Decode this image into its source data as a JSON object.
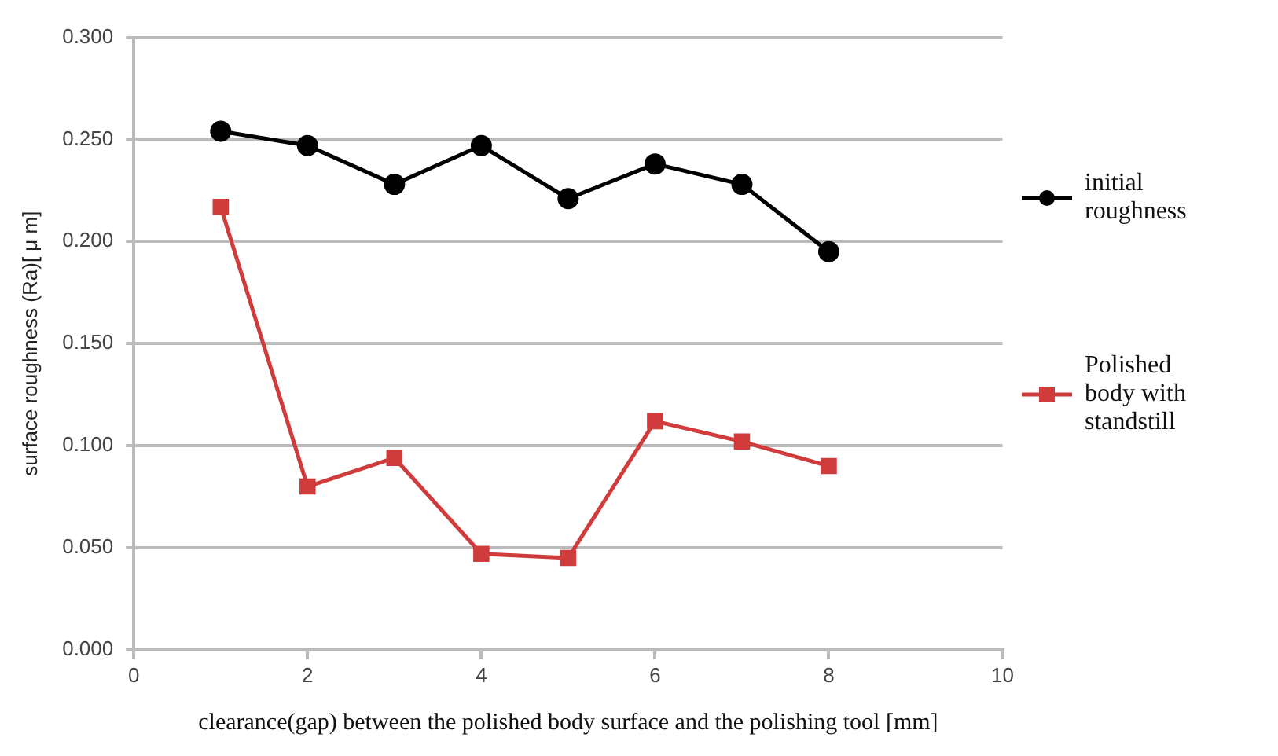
{
  "chart_data": {
    "type": "line",
    "xlabel": "clearance(gap) between the polished body surface and the polishing tool [mm]",
    "ylabel": "surface roughness (Ra)[ μ m]",
    "x": [
      1,
      2,
      3,
      4,
      5,
      6,
      7,
      8
    ],
    "series": [
      {
        "name": "initial roughness",
        "color": "#000000",
        "marker": "circle",
        "values": [
          0.254,
          0.247,
          0.228,
          0.247,
          0.221,
          0.238,
          0.228,
          0.195
        ]
      },
      {
        "name": "Polished body with standstill",
        "color": "#d03c3c",
        "marker": "square",
        "values": [
          0.217,
          0.08,
          0.094,
          0.047,
          0.045,
          0.112,
          0.102,
          0.09
        ]
      }
    ],
    "xlim": [
      0,
      10
    ],
    "xticks": [
      0,
      2,
      4,
      6,
      8,
      10
    ],
    "ylim": [
      0,
      0.3
    ],
    "yticks": [
      {
        "value": 0,
        "label": "0.000"
      },
      {
        "value": 0.05,
        "label": "0.050"
      },
      {
        "value": 0.1,
        "label": "0.100"
      },
      {
        "value": 0.15,
        "label": "0.150"
      },
      {
        "value": 0.2,
        "label": "0.200"
      },
      {
        "value": 0.25,
        "label": "0.250"
      },
      {
        "value": 0.3,
        "label": "0.300"
      }
    ],
    "grid": "y",
    "legend": "right"
  }
}
